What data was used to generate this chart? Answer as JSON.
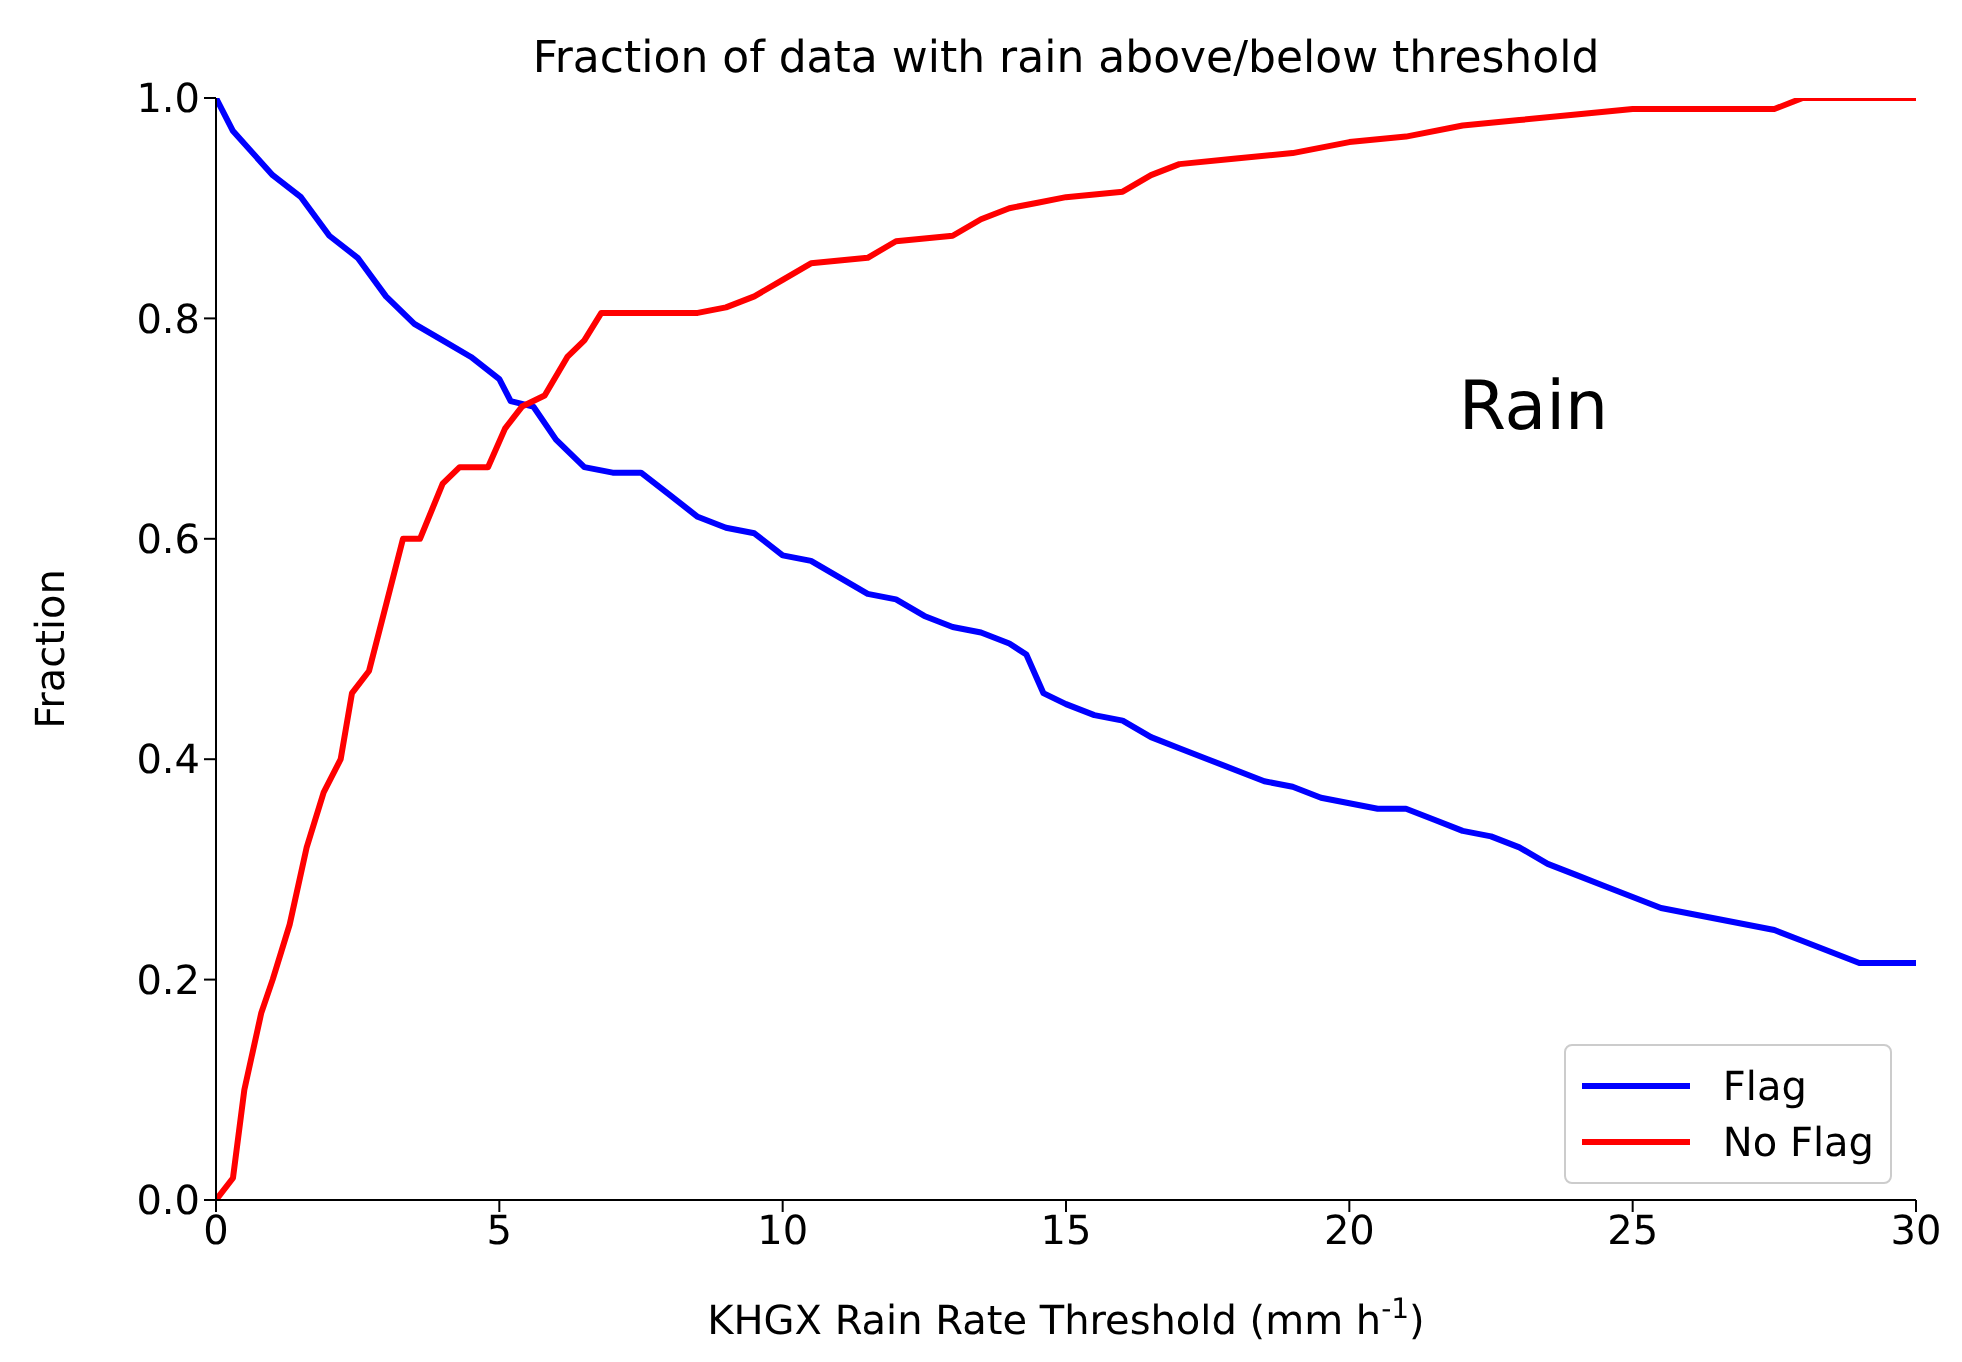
{
  "chart_data": {
    "type": "line",
    "title": "Fraction of data with rain above/below threshold",
    "xlabel": "KHGX Rain Rate Threshold (mm h$^{-1}$)",
    "ylabel": "Fraction",
    "annotations": [
      "Rain"
    ],
    "xlim": [
      0,
      30
    ],
    "xticks": [
      0,
      5,
      10,
      15,
      20,
      25,
      30
    ],
    "ylim": [
      0,
      1
    ],
    "yticks": [
      {
        "value": 0,
        "label": "0.0"
      },
      {
        "value": 0.2,
        "label": "0.2"
      },
      {
        "value": 0.4,
        "label": "0.4"
      },
      {
        "value": 0.6,
        "label": "0.6"
      },
      {
        "value": 0.8,
        "label": "0.8"
      },
      {
        "value": 1,
        "label": "1.0"
      }
    ],
    "grid": false,
    "legend": "bottom right",
    "marker": "none",
    "line_style": "solid",
    "series": [
      {
        "name": "Flag",
        "color": "#0000ff",
        "x": [
          0,
          0.3,
          1,
          1.5,
          2,
          2.5,
          3,
          3.5,
          4,
          4.5,
          5,
          5.2,
          5.6,
          6,
          6.5,
          7,
          7.5,
          8,
          8.5,
          9,
          9.5,
          10,
          10.5,
          11,
          11.5,
          12,
          12.5,
          13,
          13.5,
          14,
          14.3,
          14.6,
          15,
          15.5,
          16,
          16.5,
          17,
          17.5,
          18,
          18.5,
          19,
          19.5,
          20,
          20.5,
          21,
          21.5,
          22,
          22.5,
          23,
          23.5,
          24,
          24.5,
          25,
          25.5,
          26,
          26.5,
          27,
          27.5,
          28,
          28.5,
          29,
          30
        ],
        "values": [
          1.0,
          0.97,
          0.93,
          0.91,
          0.875,
          0.855,
          0.82,
          0.795,
          0.78,
          0.765,
          0.745,
          0.725,
          0.72,
          0.69,
          0.665,
          0.66,
          0.66,
          0.64,
          0.62,
          0.61,
          0.605,
          0.585,
          0.58,
          0.565,
          0.55,
          0.545,
          0.53,
          0.52,
          0.515,
          0.505,
          0.495,
          0.46,
          0.45,
          0.44,
          0.435,
          0.42,
          0.41,
          0.4,
          0.39,
          0.38,
          0.375,
          0.365,
          0.36,
          0.355,
          0.355,
          0.345,
          0.335,
          0.33,
          0.32,
          0.305,
          0.295,
          0.285,
          0.275,
          0.265,
          0.26,
          0.255,
          0.25,
          0.245,
          0.235,
          0.225,
          0.215,
          0.215
        ]
      },
      {
        "name": "No Flag",
        "color": "#ff0000",
        "x": [
          0,
          0.3,
          0.5,
          0.8,
          1,
          1.3,
          1.6,
          1.9,
          2.2,
          2.4,
          2.7,
          3,
          3.3,
          3.6,
          4,
          4.3,
          4.8,
          5.1,
          5.4,
          5.8,
          6.2,
          6.5,
          6.8,
          8.5,
          9,
          9.5,
          10,
          10.5,
          11.5,
          12,
          13,
          13.5,
          14,
          14.5,
          15,
          16,
          16.5,
          17,
          18,
          19,
          20,
          21,
          22,
          23,
          24,
          25,
          27.5,
          28,
          30
        ],
        "values": [
          0,
          0.02,
          0.1,
          0.17,
          0.2,
          0.25,
          0.32,
          0.37,
          0.4,
          0.46,
          0.48,
          0.54,
          0.6,
          0.6,
          0.65,
          0.665,
          0.665,
          0.7,
          0.72,
          0.73,
          0.765,
          0.78,
          0.805,
          0.805,
          0.81,
          0.82,
          0.835,
          0.85,
          0.855,
          0.87,
          0.875,
          0.89,
          0.9,
          0.905,
          0.91,
          0.915,
          0.93,
          0.94,
          0.945,
          0.95,
          0.96,
          0.965,
          0.975,
          0.98,
          0.985,
          0.99,
          0.99,
          1.0,
          1.0
        ]
      }
    ]
  }
}
